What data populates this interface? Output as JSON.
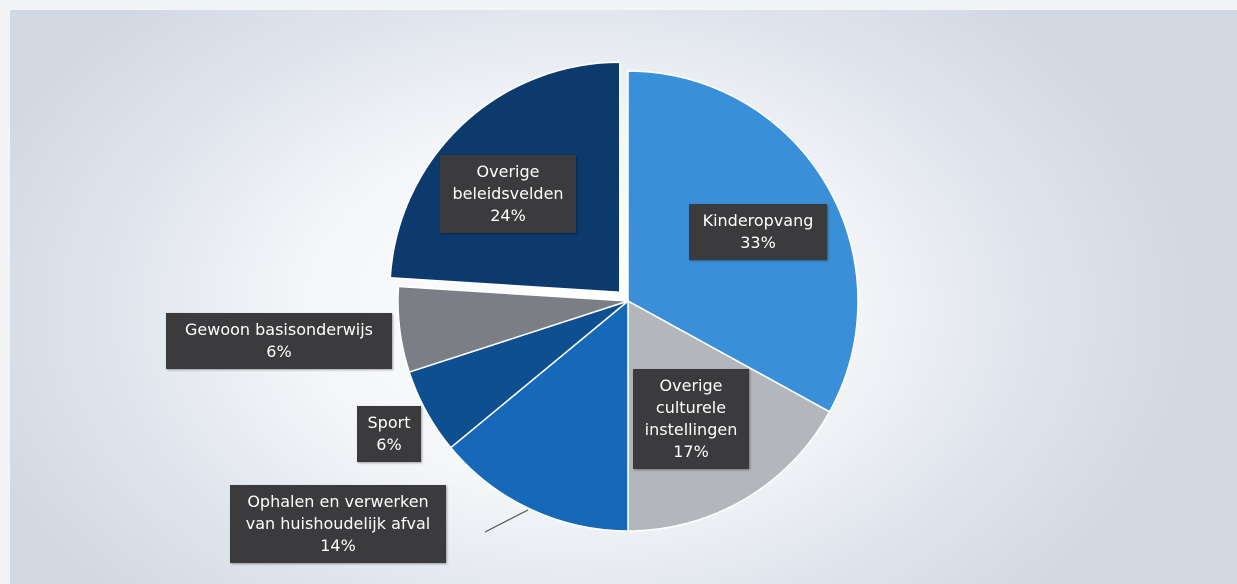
{
  "chart_data": {
    "type": "pie",
    "slices": [
      {
        "label": "Kinderopvang",
        "value": 33,
        "value_label": "33%",
        "color": "#3a8fd9"
      },
      {
        "label": "Overige culturele instellingen",
        "value": 17,
        "value_label": "17%",
        "color": "#b3b6ba"
      },
      {
        "label": "Ophalen en verwerken van huishoudelijk afval",
        "value": 14,
        "value_label": "14%",
        "color": "#1668b8"
      },
      {
        "label": "Sport",
        "value": 6,
        "value_label": "6%",
        "color": "#0d4f8f"
      },
      {
        "label": "Gewoon basisonderwijs",
        "value": 6,
        "value_label": "6%",
        "color": "#7b7f85"
      },
      {
        "label": "Overige beleidsvelden",
        "value": 24,
        "value_label": "24%",
        "color": "#0c3a6d"
      }
    ]
  },
  "labels": {
    "kinderopvang": {
      "lines": [
        "Kinderopvang"
      ],
      "pct": "33%"
    },
    "culturele": {
      "lines": [
        "Overige",
        "culturele",
        "instellingen"
      ],
      "pct": "17%"
    },
    "afval": {
      "lines": [
        "Ophalen en verwerken",
        "van huishoudelijk afval"
      ],
      "pct": "14%"
    },
    "sport": {
      "lines": [
        "Sport"
      ],
      "pct": "6%"
    },
    "basisonderwijs": {
      "lines": [
        "Gewoon basisonderwijs"
      ],
      "pct": "6%"
    },
    "overige": {
      "lines": [
        "Overige",
        "beleidsvelden"
      ],
      "pct": "24%"
    }
  }
}
